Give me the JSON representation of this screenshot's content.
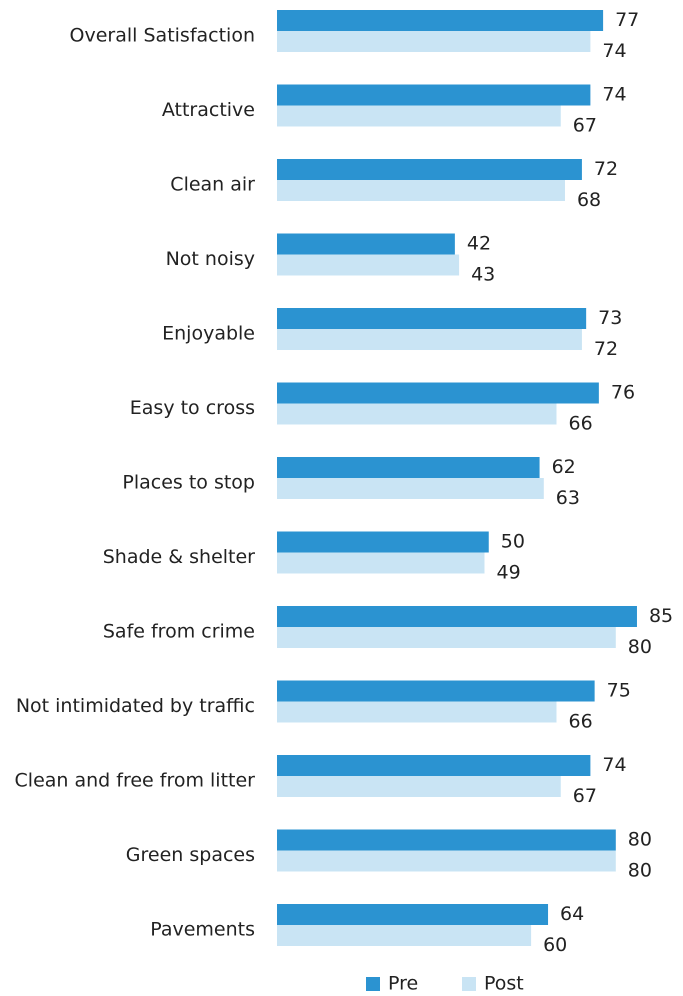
{
  "chart_data": {
    "type": "bar",
    "orientation": "horizontal",
    "title": "",
    "xlabel": "",
    "ylabel": "",
    "xlim": [
      0,
      100
    ],
    "grid": false,
    "legend_position": "bottom",
    "categories": [
      "Overall Satisfaction",
      "Attractive",
      "Clean air",
      "Not noisy",
      "Enjoyable",
      "Easy to cross",
      "Places to stop",
      "Shade & shelter",
      "Safe from crime",
      "Not intimidated by traffic",
      "Clean and free from litter",
      "Green spaces",
      "Pavements"
    ],
    "series": [
      {
        "name": "Pre",
        "color": "#2b93d1",
        "values": [
          77,
          74,
          72,
          42,
          73,
          76,
          62,
          50,
          85,
          75,
          74,
          80,
          64
        ]
      },
      {
        "name": "Post",
        "color": "#c9e4f4",
        "values": [
          74,
          67,
          68,
          43,
          72,
          66,
          63,
          49,
          80,
          66,
          67,
          80,
          60
        ]
      }
    ]
  }
}
